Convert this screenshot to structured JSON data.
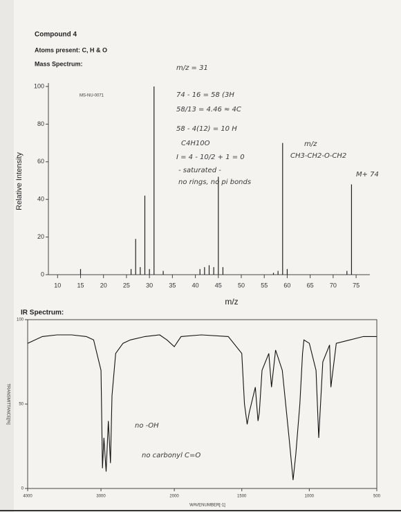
{
  "header": {
    "compound": "Compound 4",
    "atoms": "Atoms present: C, H & O",
    "mass_label": "Mass Spectrum:"
  },
  "mass_spectrum": {
    "type": "bar",
    "code": "MS-NU-0071",
    "xlabel": "m/z",
    "ylabel": "Relative Intensity",
    "mz": [
      15,
      26,
      27,
      28,
      29,
      30,
      31,
      33,
      41,
      42,
      43,
      44,
      45,
      46,
      57,
      58,
      59,
      60,
      73,
      74
    ],
    "values": [
      3,
      3,
      19,
      4,
      42,
      3,
      100,
      2,
      3,
      4,
      5,
      4,
      52,
      4,
      1,
      2,
      70,
      3,
      2,
      48
    ],
    "color": "#222222",
    "xlim": [
      8,
      78
    ],
    "ylim": [
      0,
      100
    ],
    "xticks": [
      10,
      15,
      20,
      25,
      30,
      35,
      40,
      45,
      50,
      55,
      60,
      65,
      70,
      75
    ],
    "yticks": [
      0,
      20,
      40,
      60,
      80,
      100
    ]
  },
  "annotations": [
    "m/z = 31",
    "74 - 16 = 58 (3H",
    "58/13 = 4.46 ≈ 4C",
    "58 - 4(12) = 10 H",
    "C4H10O",
    "I = 4 - 10/2 + 1 = 0",
    "- saturated -",
    "no rings, no pi bonds",
    "m/z",
    "CH3-CH2-O-CH2",
    "M+ 74"
  ],
  "ir_spectrum": {
    "type": "line",
    "title": "IR Spectrum:",
    "xlabel": "WAVENUMBER[-1]",
    "ylabel": "TRANSMITTANCE[%]",
    "x": [
      4000,
      3800,
      3600,
      3400,
      3200,
      3100,
      3000,
      2980,
      2960,
      2930,
      2900,
      2870,
      2850,
      2800,
      2700,
      2600,
      2400,
      2200,
      2100,
      2000,
      1950,
      1800,
      1600,
      1500,
      1480,
      1460,
      1445,
      1400,
      1380,
      1370,
      1350,
      1300,
      1280,
      1250,
      1200,
      1150,
      1120,
      1100,
      1070,
      1050,
      1040,
      1000,
      950,
      930,
      900,
      850,
      840,
      800,
      700,
      600,
      500
    ],
    "y": [
      86,
      90,
      91,
      91,
      90,
      88,
      70,
      12,
      30,
      10,
      40,
      15,
      55,
      80,
      86,
      88,
      90,
      91,
      88,
      84,
      90,
      91,
      90,
      80,
      50,
      38,
      45,
      60,
      40,
      45,
      70,
      80,
      60,
      82,
      70,
      30,
      5,
      20,
      50,
      80,
      88,
      86,
      70,
      30,
      75,
      85,
      60,
      86,
      88,
      90,
      90
    ],
    "color": "#111111",
    "xlim": [
      4000,
      500
    ],
    "ylim": [
      0,
      100
    ],
    "xticks": [
      4000,
      3000,
      2000,
      1500,
      1000,
      500
    ],
    "yticks": [
      0,
      50,
      100
    ]
  },
  "ir_annotations": [
    "no -OH",
    "no carbonyl C=O"
  ]
}
